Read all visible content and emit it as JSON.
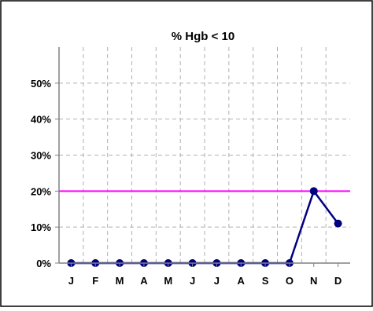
{
  "chart_data": {
    "type": "line",
    "title": "% Hgb < 10",
    "xlabel": "",
    "ylabel": "",
    "categories": [
      "J",
      "F",
      "M",
      "A",
      "M",
      "J",
      "J",
      "A",
      "S",
      "O",
      "N",
      "D"
    ],
    "values": [
      0,
      0,
      0,
      0,
      0,
      0,
      0,
      0,
      0,
      0,
      20,
      11
    ],
    "ylim": [
      0,
      60
    ],
    "yticks": [
      0,
      10,
      20,
      30,
      40,
      50
    ],
    "ytick_labels": [
      "0%",
      "10%",
      "20%",
      "30%",
      "40%",
      "50%"
    ],
    "grid": true,
    "legend": "none",
    "reference_line": {
      "value": 20
    },
    "colors": {
      "series": "#000080",
      "reference": "#ff00ff",
      "grid": "#b0b0b0",
      "axis": "#808080",
      "text": "#000000",
      "border": "#000000"
    }
  }
}
